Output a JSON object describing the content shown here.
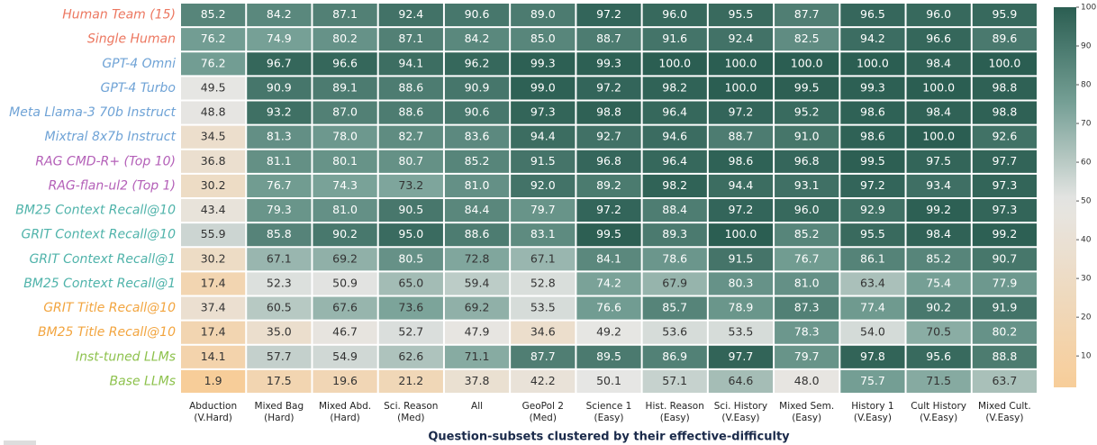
{
  "chart_data": {
    "type": "heatmap",
    "xlabel": "Question-subsets clustered by their effective-difficulty",
    "categories": [
      [
        "Abduction",
        "(V.Hard)"
      ],
      [
        "Mixed Bag",
        "(Hard)"
      ],
      [
        "Mixed Abd.",
        "(Hard)"
      ],
      [
        "Sci. Reason",
        "(Med)"
      ],
      [
        "All"
      ],
      [
        "GeoPol 2",
        "(Med)"
      ],
      [
        "Science 1",
        "(Easy)"
      ],
      [
        "Hist. Reason",
        "(Easy)"
      ],
      [
        "Sci. History",
        "(V.Easy)"
      ],
      [
        "Mixed Sem.",
        "(Easy)"
      ],
      [
        "History 1",
        "(V.Easy)"
      ],
      [
        "Cult History",
        "(V.Easy)"
      ],
      [
        "Mixed Cult.",
        "(V.Easy)"
      ]
    ],
    "rows": [
      "Human Team (15)",
      "Single Human",
      "GPT-4 Omni",
      "GPT-4 Turbo",
      "Meta Llama-3 70b Instruct",
      "Mixtral 8x7b Instruct",
      "RAG CMD-R+ (Top 10)",
      "RAG-flan-ul2 (Top 1)",
      "BM25 Context Recall@10",
      "GRIT Context Recall@10",
      "GRIT Context Recall@1",
      "BM25 Context Recall@1",
      "GRIT Title Recall@10",
      "BM25 Title Recall@10",
      "Inst-tuned LLMs",
      "Base LLMs"
    ],
    "row_label_colors": [
      "#ec7760",
      "#ec7760",
      "#6fa3d6",
      "#6fa3d6",
      "#6fa3d6",
      "#6fa3d6",
      "#b460b8",
      "#b460b8",
      "#4fb3aa",
      "#4fb3aa",
      "#4fb3aa",
      "#4fb3aa",
      "#f2a540",
      "#f2a540",
      "#8ec24e",
      "#8ec24e"
    ],
    "values": [
      [
        85.2,
        84.2,
        87.1,
        92.4,
        90.6,
        89.0,
        97.2,
        96.0,
        95.5,
        87.7,
        96.5,
        96.0,
        95.9
      ],
      [
        76.2,
        74.9,
        80.2,
        87.1,
        84.2,
        85.0,
        88.7,
        91.6,
        92.4,
        82.5,
        94.2,
        96.6,
        89.6
      ],
      [
        76.2,
        96.7,
        96.6,
        94.1,
        96.2,
        99.3,
        99.3,
        100.0,
        100.0,
        100.0,
        100.0,
        98.4,
        100.0
      ],
      [
        49.5,
        90.9,
        89.1,
        88.6,
        90.9,
        99.0,
        97.2,
        98.2,
        100.0,
        99.5,
        99.3,
        100.0,
        98.8
      ],
      [
        48.8,
        93.2,
        87.0,
        88.6,
        90.6,
        97.3,
        98.8,
        96.4,
        97.2,
        95.2,
        98.6,
        98.4,
        98.8
      ],
      [
        34.5,
        81.3,
        78.0,
        82.7,
        83.6,
        94.4,
        92.7,
        94.6,
        88.7,
        91.0,
        98.6,
        100.0,
        92.6
      ],
      [
        36.8,
        81.1,
        80.1,
        80.7,
        85.2,
        91.5,
        96.8,
        96.4,
        98.6,
        96.8,
        99.5,
        97.5,
        97.7
      ],
      [
        30.2,
        76.7,
        74.3,
        73.2,
        81.0,
        92.0,
        89.2,
        98.2,
        94.4,
        93.1,
        97.2,
        93.4,
        97.3
      ],
      [
        43.4,
        79.3,
        81.0,
        90.5,
        84.4,
        79.7,
        97.2,
        88.4,
        97.2,
        96.0,
        92.9,
        99.2,
        97.3
      ],
      [
        55.9,
        85.8,
        90.2,
        95.0,
        88.6,
        83.1,
        99.5,
        89.3,
        100.0,
        85.2,
        95.5,
        98.4,
        99.2
      ],
      [
        30.2,
        67.1,
        69.2,
        80.5,
        72.8,
        67.1,
        84.1,
        78.6,
        91.5,
        76.7,
        86.1,
        85.2,
        90.7
      ],
      [
        17.4,
        52.3,
        50.9,
        65.0,
        59.4,
        52.8,
        74.2,
        67.9,
        80.3,
        81.0,
        63.4,
        75.4,
        77.9
      ],
      [
        37.4,
        60.5,
        67.6,
        73.6,
        69.2,
        53.5,
        76.6,
        85.7,
        78.9,
        87.3,
        77.4,
        90.2,
        91.9
      ],
      [
        17.4,
        35.0,
        46.7,
        52.7,
        47.9,
        34.6,
        49.2,
        53.6,
        53.5,
        78.3,
        54.0,
        70.5,
        80.2
      ],
      [
        14.1,
        57.7,
        54.9,
        62.6,
        71.1,
        87.7,
        89.5,
        86.9,
        97.7,
        79.7,
        97.8,
        95.6,
        88.8
      ],
      [
        1.9,
        17.5,
        19.6,
        21.2,
        37.8,
        42.2,
        50.1,
        57.1,
        64.6,
        48.0,
        75.7,
        71.5,
        63.7
      ]
    ],
    "value_labels": [
      [
        "85.2",
        "84.2",
        "87.1",
        "92.4",
        "90.6",
        "89.0",
        "97.2",
        "96.0",
        "95.5",
        "87.7",
        "96.5",
        "96.0",
        "95.9"
      ],
      [
        "76.2",
        "74.9",
        "80.2",
        "87.1",
        "84.2",
        "85.0",
        "88.7",
        "91.6",
        "92.4",
        "82.5",
        "94.2",
        "96.6",
        "89.6"
      ],
      [
        "76.2",
        "96.7",
        "96.6",
        "94.1",
        "96.2",
        "99.3",
        "99.3",
        "100.0",
        "100.0",
        "100.0",
        "100.0",
        "98.4",
        "100.0"
      ],
      [
        "49.5",
        "90.9",
        "89.1",
        "88.6",
        "90.9",
        "99.0",
        "97.2",
        "98.2",
        "100.0",
        "99.5",
        "99.3",
        "100.0",
        "98.8"
      ],
      [
        "48.8",
        "93.2",
        "87.0",
        "88.6",
        "90.6",
        "97.3",
        "98.8",
        "96.4",
        "97.2",
        "95.2",
        "98.6",
        "98.4",
        "98.8"
      ],
      [
        "34.5",
        "81.3",
        "78.0",
        "82.7",
        "83.6",
        "94.4",
        "92.7",
        "94.6",
        "88.7",
        "91.0",
        "98.6",
        "100.0",
        "92.6"
      ],
      [
        "36.8",
        "81.1",
        "80.1",
        "80.7",
        "85.2",
        "91.5",
        "96.8",
        "96.4",
        "98.6",
        "96.8",
        "99.5",
        "97.5",
        "97.7"
      ],
      [
        "30.2",
        "76.7",
        "74.3",
        "73.2",
        "81.0",
        "92.0",
        "89.2",
        "98.2",
        "94.4",
        "93.1",
        "97.2",
        "93.4",
        "97.3"
      ],
      [
        "43.4",
        "79.3",
        "81.0",
        "90.5",
        "84.4",
        "79.7",
        "97.2",
        "88.4",
        "97.2",
        "96.0",
        "92.9",
        "99.2",
        "97.3"
      ],
      [
        "55.9",
        "85.8",
        "90.2",
        "95.0",
        "88.6",
        "83.1",
        "99.5",
        "89.3",
        "100.0",
        "85.2",
        "95.5",
        "98.4",
        "99.2"
      ],
      [
        "30.2",
        "67.1",
        "69.2",
        "80.5",
        "72.8",
        "67.1",
        "84.1",
        "78.6",
        "91.5",
        "76.7",
        "86.1",
        "85.2",
        "90.7"
      ],
      [
        "17.4",
        "52.3",
        "50.9",
        "65.0",
        "59.4",
        "52.8",
        "74.2",
        "67.9",
        "80.3",
        "81.0",
        "63.4",
        "75.4",
        "77.9"
      ],
      [
        "37.4",
        "60.5",
        "67.6",
        "73.6",
        "69.2",
        "53.5",
        "76.6",
        "85.7",
        "78.9",
        "87.3",
        "77.4",
        "90.2",
        "91.9"
      ],
      [
        "17.4",
        "35.0",
        "46.7",
        "52.7",
        "47.9",
        "34.6",
        "49.2",
        "53.6",
        "53.5",
        "78.3",
        "54.0",
        "70.5",
        "80.2"
      ],
      [
        "14.1",
        "57.7",
        "54.9",
        "62.6",
        "71.1",
        "87.7",
        "89.5",
        "86.9",
        "97.7",
        "79.7",
        "97.8",
        "95.6",
        "88.8"
      ],
      [
        "1.9",
        "17.5",
        "19.6",
        "21.2",
        "37.8",
        "42.2",
        "50.1",
        "57.1",
        "64.6",
        "48.0",
        "75.7",
        "71.5",
        "63.7"
      ]
    ],
    "zlim": [
      1.9,
      100
    ],
    "colorbar_ticks": [
      10,
      20,
      30,
      40,
      50,
      60,
      70,
      80,
      90,
      100
    ],
    "colorscale": [
      [
        0,
        "#f8cc96"
      ],
      [
        50,
        "#e6e6e4"
      ],
      [
        75,
        "#76a096"
      ],
      [
        100,
        "#2b5e52"
      ]
    ]
  }
}
